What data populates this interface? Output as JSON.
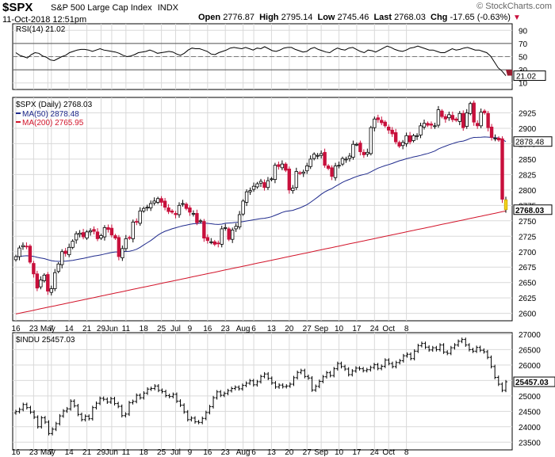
{
  "header": {
    "symbol": "$SPX",
    "description": "S&P 500 Large Cap Index",
    "exchange": "INDX",
    "datetime": "11-Oct-2018 12:51pm",
    "open_label": "Open",
    "open": "2776.87",
    "high_label": "High",
    "high": "2795.14",
    "low_label": "Low",
    "low": "2745.46",
    "last_label": "Last",
    "last": "2768.03",
    "chg_label": "Chg",
    "chg": "-17.65 (-0.63%)",
    "watermark": "© StockCharts.com"
  },
  "colors": {
    "up": "#ffffff",
    "down": "#c8103c",
    "today": "#f2d21b",
    "ma50": "#1f2a8c",
    "ma200": "#d2142a",
    "rsi": "#000000",
    "grid": "#d9d9d9",
    "tag_bg": "#ffffff"
  },
  "chart_data": [
    {
      "type": "line",
      "title": "RSI(14) 21.02",
      "series": [
        {
          "name": "RSI(14)",
          "values": [
            56,
            52,
            50,
            48,
            53,
            56,
            55,
            51,
            49,
            45,
            44,
            47,
            50,
            52,
            56,
            58,
            60,
            61,
            61,
            60,
            58,
            60,
            62,
            60,
            59,
            58,
            57,
            55,
            52,
            50,
            51,
            53,
            56,
            57,
            58,
            60,
            58,
            55,
            56,
            57,
            58,
            57,
            54,
            52,
            55,
            60,
            63,
            62,
            62,
            60,
            58,
            54,
            53,
            56,
            58,
            60,
            63,
            64,
            63,
            62,
            64,
            62,
            60,
            63,
            62,
            65,
            62,
            59,
            58,
            60,
            63,
            64,
            64,
            61,
            59,
            57,
            58,
            62,
            64,
            61,
            59,
            57,
            56,
            60,
            63,
            61,
            60,
            63,
            64,
            61,
            58,
            56,
            60,
            59,
            57,
            60,
            63,
            66,
            64,
            61,
            59,
            58,
            60,
            63,
            64,
            66,
            64,
            62,
            60,
            60,
            58,
            56,
            56,
            59,
            62,
            60,
            61,
            63,
            64,
            62,
            60,
            60,
            58,
            56,
            51,
            42,
            33,
            28,
            21.02
          ]
        }
      ],
      "ylim": [
        0,
        100
      ],
      "yticks": [
        10,
        30,
        50,
        70,
        90
      ],
      "reference_lines": [
        30,
        70
      ],
      "last_value": "21.02"
    },
    {
      "type": "candlestick",
      "title": "$SPX (Daily) 2768.03",
      "legend": [
        {
          "name": "MA(50) 2878.48",
          "color": "#1f2a8c"
        },
        {
          "name": "MA(200) 2765.95",
          "color": "#d2142a"
        }
      ],
      "ylim": [
        2588,
        2950
      ],
      "yticks": [
        2600,
        2625,
        2650,
        2675,
        2700,
        2725,
        2750,
        2775,
        2800,
        2825,
        2850,
        2875,
        2900,
        2925
      ],
      "x_tick_labels": [
        "16",
        "23",
        "May",
        "7",
        "14",
        "21",
        "29",
        "Jun",
        "11",
        "18",
        "25",
        "Jul",
        "9",
        "16",
        "23",
        "Aug",
        "6",
        "13",
        "20",
        "27",
        "Sep",
        "10",
        "17",
        "24",
        "Oct",
        "8"
      ],
      "closes": [
        2692,
        2706,
        2710,
        2708,
        2683,
        2664,
        2641,
        2654,
        2662,
        2636,
        2640,
        2666,
        2680,
        2700,
        2697,
        2707,
        2717,
        2729,
        2730,
        2724,
        2732,
        2734,
        2733,
        2721,
        2726,
        2739,
        2736,
        2727,
        2722,
        2692,
        2705,
        2721,
        2722,
        2748,
        2748,
        2766,
        2770,
        2772,
        2778,
        2782,
        2786,
        2780,
        2772,
        2765,
        2764,
        2760,
        2775,
        2778,
        2770,
        2764,
        2762,
        2747,
        2750,
        2722,
        2718,
        2716,
        2712,
        2713,
        2737,
        2739,
        2720,
        2735,
        2741,
        2760,
        2782,
        2797,
        2799,
        2806,
        2810,
        2814,
        2804,
        2815,
        2818,
        2840,
        2838,
        2842,
        2832,
        2800,
        2803,
        2830,
        2827,
        2829,
        2839,
        2850,
        2858,
        2856,
        2859,
        2840,
        2835,
        2822,
        2839,
        2840,
        2851,
        2850,
        2855,
        2874,
        2874,
        2862,
        2857,
        2861,
        2901,
        2915,
        2914,
        2909,
        2904,
        2897,
        2891,
        2878,
        2871,
        2877,
        2888,
        2878,
        2888,
        2888,
        2904,
        2908,
        2905,
        2905,
        2904,
        2930,
        2919,
        2915,
        2922,
        2914,
        2913,
        2924,
        2901,
        2925,
        2940,
        2910,
        2904,
        2926,
        2925,
        2901,
        2885,
        2884,
        2881,
        2785,
        2768.03
      ],
      "ma50": {
        "first": 2692,
        "last": 2878.48
      },
      "ma200": {
        "first": 2599,
        "last": 2765.95
      },
      "last_tag": "2768.03",
      "ma50_tag": "2878.48"
    },
    {
      "type": "line",
      "title": "$INDU 25457.03",
      "ylim": [
        23250,
        27050
      ],
      "yticks": [
        23500,
        24000,
        24500,
        25000,
        25500,
        26000,
        26500,
        27000
      ],
      "closes": [
        24490,
        24560,
        24720,
        24620,
        24475,
        24310,
        24000,
        24290,
        24150,
        23780,
        23920,
        24100,
        24350,
        24510,
        24580,
        24830,
        24680,
        24400,
        24230,
        24340,
        24260,
        24620,
        24760,
        24920,
        24890,
        24800,
        24910,
        24750,
        24660,
        24360,
        24410,
        24780,
        24820,
        25020,
        24940,
        25090,
        25220,
        25240,
        25320,
        25180,
        25140,
        25010,
        24980,
        25050,
        24830,
        24700,
        24480,
        24230,
        24280,
        24160,
        24140,
        24270,
        24460,
        24650,
        24940,
        25130,
        25020,
        25080,
        25170,
        25240,
        25280,
        25230,
        25340,
        25410,
        25490,
        25360,
        25460,
        25630,
        25710,
        25570,
        25420,
        25290,
        25350,
        25300,
        25320,
        25380,
        25590,
        25760,
        25820,
        25630,
        25580,
        25190,
        25310,
        25470,
        25620,
        25750,
        25660,
        25880,
        26050,
        25950,
        25870,
        25690,
        25810,
        25900,
        25880,
        25820,
        25850,
        25920,
        26010,
        25890,
        25960,
        26160,
        26050,
        25950,
        26080,
        26140,
        26300,
        26350,
        26210,
        26450,
        26630,
        26700,
        26580,
        26490,
        26560,
        26500,
        26650,
        26420,
        26380,
        26560,
        26650,
        26770,
        26830,
        26650,
        26500,
        26450,
        26570,
        26480,
        26430,
        26250,
        25950,
        25600,
        25380,
        25180,
        25457.03
      ],
      "last_tag": "25457.03"
    }
  ],
  "watermark_main": "© StockCharts.com"
}
